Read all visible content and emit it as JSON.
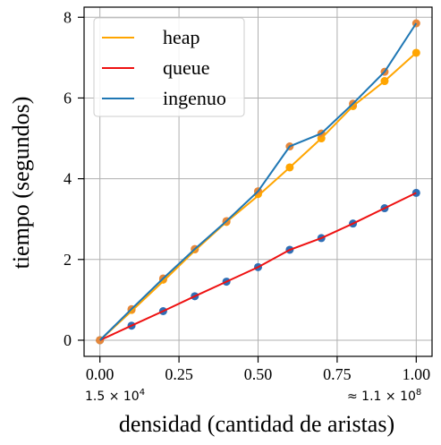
{
  "chart_data": {
    "type": "line",
    "xlabel": "densidad (cantidad de aristas)",
    "ylabel": "tiempo (segundos)",
    "xlim": [
      -0.05,
      1.05
    ],
    "ylim": [
      -0.4,
      8.25
    ],
    "xticks": [
      0.0,
      0.25,
      0.5,
      0.75,
      1.0
    ],
    "xtick_labels": [
      "0.00",
      "0.25",
      "0.50",
      "0.75",
      "1.00"
    ],
    "yticks": [
      0,
      2,
      4,
      6,
      8
    ],
    "ytick_labels": [
      "0",
      "2",
      "4",
      "6",
      "8"
    ],
    "x_annotation_left": "1.5 × 10",
    "x_annotation_left_exp": "4",
    "x_annotation_right": "≈ 1.1 × 10",
    "x_annotation_right_exp": "8",
    "grid": true,
    "legend_position": "upper-left",
    "x": [
      0.0,
      0.1,
      0.2,
      0.3,
      0.4,
      0.5,
      0.6,
      0.7,
      0.8,
      0.9,
      1.0
    ],
    "series": [
      {
        "name": "heap",
        "color": "#FFA500",
        "values": [
          0.0,
          0.72,
          1.46,
          2.22,
          2.93,
          3.58,
          4.28,
          5.0,
          5.8,
          6.42,
          7.12
        ],
        "scatter_color": "#FFA500",
        "scatter_values": [
          0.0,
          0.75,
          1.5,
          2.25,
          2.93,
          3.62,
          4.28,
          5.0,
          5.8,
          6.42,
          7.12
        ]
      },
      {
        "name": "queue",
        "color": "#EE1111",
        "values": [
          0.0,
          0.36,
          0.72,
          1.09,
          1.45,
          1.81,
          2.24,
          2.53,
          2.89,
          3.27,
          3.65
        ],
        "scatter_color": "#2F6EB5",
        "scatter_values": [
          0.0,
          0.36,
          0.72,
          1.09,
          1.45,
          1.81,
          2.24,
          2.53,
          2.89,
          3.27,
          3.65
        ]
      },
      {
        "name": "ingenuo",
        "color": "#1F77B4",
        "values": [
          0.0,
          0.77,
          1.53,
          2.26,
          2.95,
          3.69,
          4.8,
          5.12,
          5.86,
          6.65,
          7.85
        ],
        "scatter_color": "#E6873A",
        "scatter_values": [
          0.0,
          0.77,
          1.53,
          2.26,
          2.95,
          3.69,
          4.8,
          5.12,
          5.86,
          6.65,
          7.85
        ]
      }
    ]
  }
}
